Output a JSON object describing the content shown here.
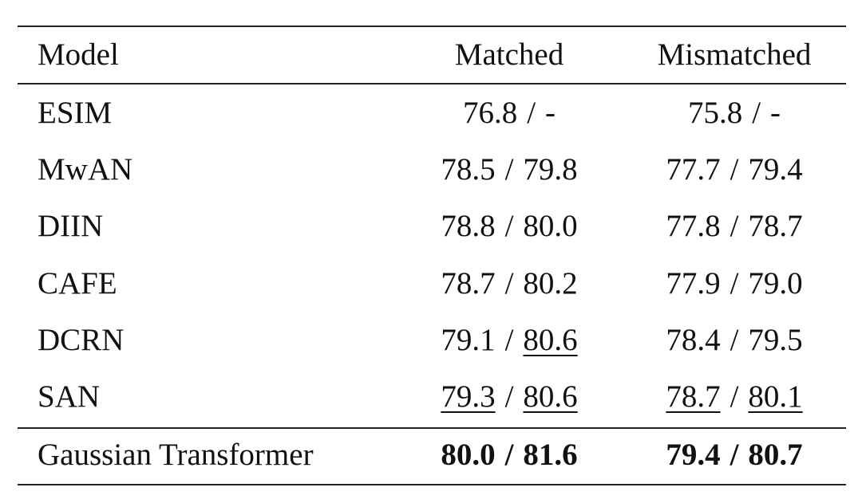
{
  "table": {
    "columns": [
      "Model",
      "Matched",
      "Mismatched"
    ],
    "rows": [
      {
        "model": "ESIM",
        "matched": [
          {
            "text": "76.8"
          },
          {
            "text": "/"
          },
          {
            "text": "-"
          }
        ],
        "mismatched": [
          {
            "text": "75.8"
          },
          {
            "text": "/"
          },
          {
            "text": "-"
          }
        ]
      },
      {
        "model": "MwAN",
        "matched": [
          {
            "text": "78.5"
          },
          {
            "text": "/"
          },
          {
            "text": "79.8"
          }
        ],
        "mismatched": [
          {
            "text": "77.7"
          },
          {
            "text": "/"
          },
          {
            "text": "79.4"
          }
        ]
      },
      {
        "model": "DIIN",
        "matched": [
          {
            "text": "78.8"
          },
          {
            "text": "/"
          },
          {
            "text": "80.0"
          }
        ],
        "mismatched": [
          {
            "text": "77.8"
          },
          {
            "text": "/"
          },
          {
            "text": "78.7"
          }
        ]
      },
      {
        "model": "CAFE",
        "matched": [
          {
            "text": "78.7"
          },
          {
            "text": "/"
          },
          {
            "text": "80.2"
          }
        ],
        "mismatched": [
          {
            "text": "77.9"
          },
          {
            "text": "/"
          },
          {
            "text": "79.0"
          }
        ]
      },
      {
        "model": "DCRN",
        "matched": [
          {
            "text": "79.1"
          },
          {
            "text": "/"
          },
          {
            "text": "80.6",
            "underline": true
          }
        ],
        "mismatched": [
          {
            "text": "78.4"
          },
          {
            "text": "/"
          },
          {
            "text": "79.5"
          }
        ]
      },
      {
        "model": "SAN",
        "matched": [
          {
            "text": "79.3",
            "underline": true
          },
          {
            "text": "/"
          },
          {
            "text": "80.6",
            "underline": true
          }
        ],
        "mismatched": [
          {
            "text": "78.7",
            "underline": true
          },
          {
            "text": "/"
          },
          {
            "text": "80.1",
            "underline": true
          }
        ]
      },
      {
        "model": "Gaussian Transformer",
        "matched": [
          {
            "text": "80.0"
          },
          {
            "text": "/"
          },
          {
            "text": "81.6"
          }
        ],
        "mismatched": [
          {
            "text": "79.4"
          },
          {
            "text": "/"
          },
          {
            "text": "80.7"
          }
        ],
        "bold": true
      }
    ]
  }
}
